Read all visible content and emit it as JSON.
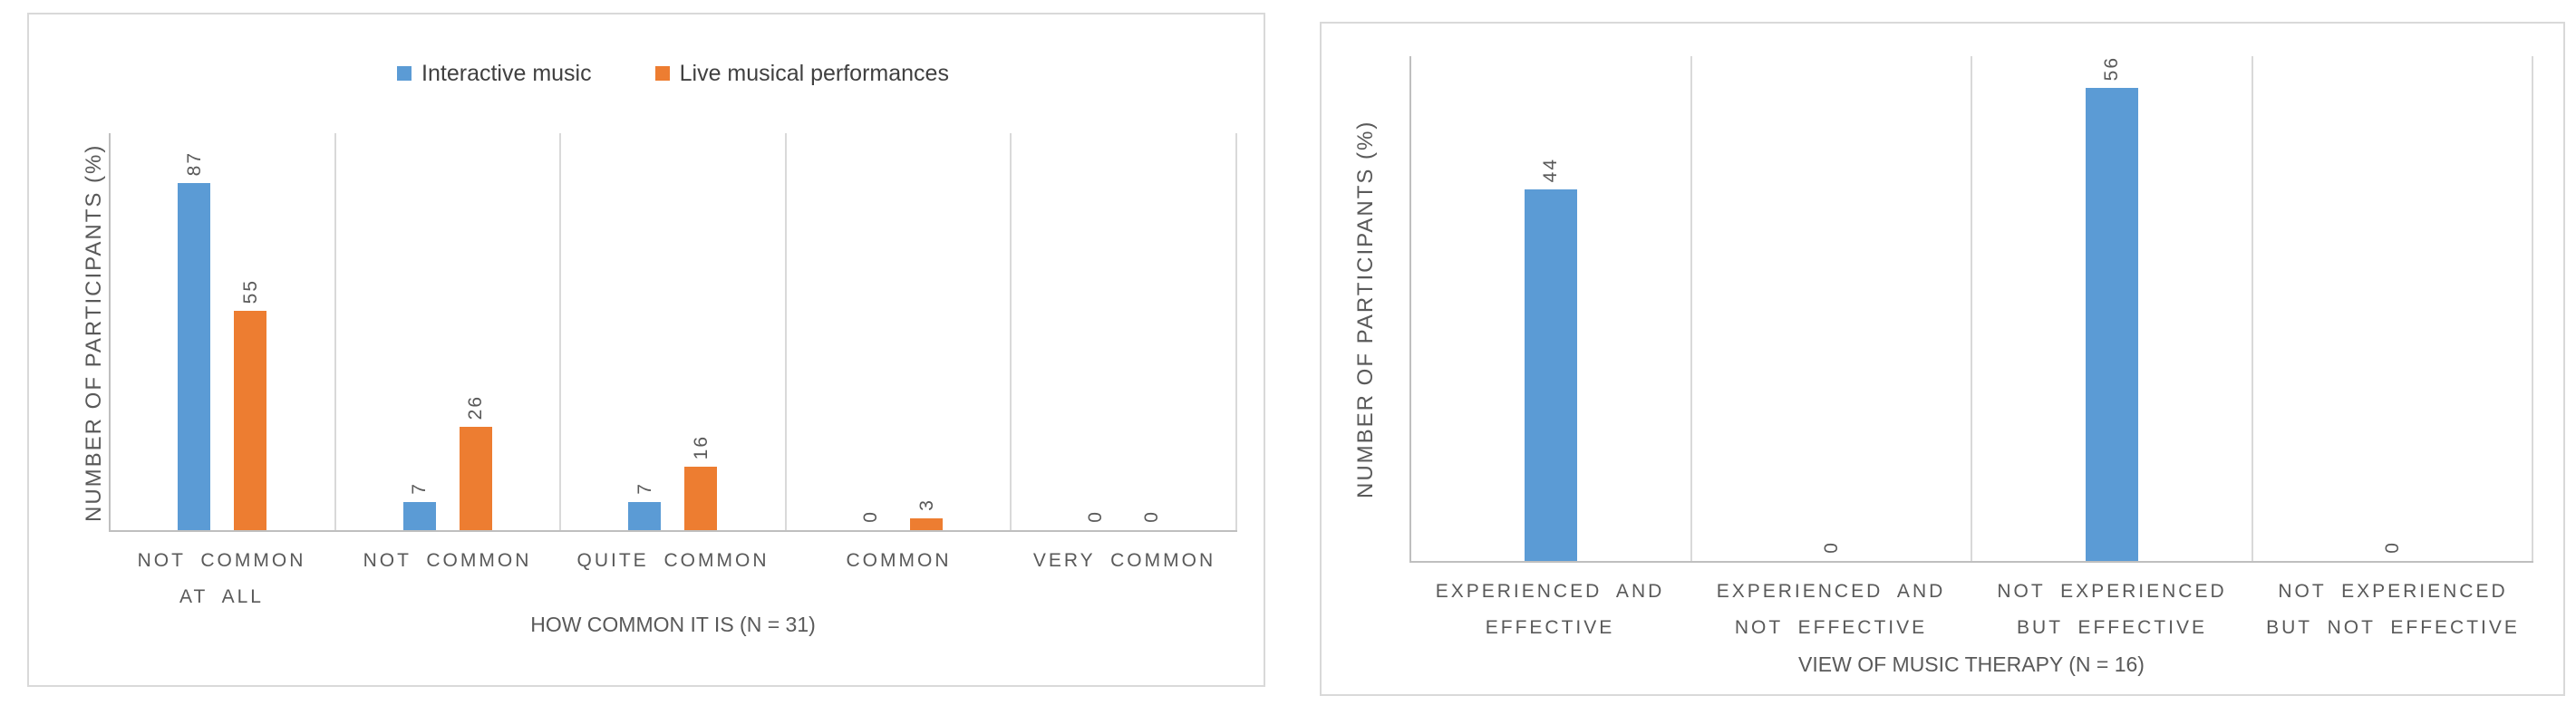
{
  "colors": {
    "series_blue": "#5B9BD5",
    "series_orange": "#ED7D31",
    "axis_line": "#BFBFBF",
    "gridline": "#D9D9D9",
    "label_text": "#595959",
    "legend_text": "#404040",
    "panel_border": "#D9D9D9",
    "background": "#FFFFFF"
  },
  "chart_data": [
    {
      "type": "bar",
      "title": "",
      "categories": [
        "NOT COMMON\nAT ALL",
        "NOT COMMON",
        "QUITE COMMON",
        "COMMON",
        "VERY COMMON"
      ],
      "series": [
        {
          "name": "Interactive music",
          "color": "#5B9BD5",
          "values": [
            87,
            7,
            7,
            0,
            0
          ]
        },
        {
          "name": "Live musical performances",
          "color": "#ED7D31",
          "values": [
            55,
            26,
            16,
            3,
            0
          ]
        }
      ],
      "xlabel": "HOW COMMON IT IS (N = 31)",
      "ylabel": "NUMBER OF PARTICIPANTS (%)",
      "ylim": [
        0,
        100
      ],
      "grid": "vertical-category-separators-only",
      "legend_position": "top",
      "data_labels": "values shown rotated 90° (reading bottom-to-top) above each bar"
    },
    {
      "type": "bar",
      "title": "",
      "categories": [
        "EXPERIENCED AND\nEFFECTIVE",
        "EXPERIENCED AND\nNOT EFFECTIVE",
        "NOT EXPERIENCED\nBUT EFFECTIVE",
        "NOT EXPERIENCED\nBUT NOT EFFECTIVE"
      ],
      "series": [
        {
          "name": "Number of participants",
          "color": "#5B9BD5",
          "values": [
            44,
            0,
            56,
            0
          ]
        }
      ],
      "xlabel": "VIEW OF MUSIC THERAPY (N = 16)",
      "ylabel": "NUMBER OF PARTICIPANTS (%)",
      "ylim": [
        0,
        60
      ],
      "grid": "vertical-category-separators-only",
      "legend_position": "none",
      "data_labels": "values shown rotated 90° (reading bottom-to-top) above each bar"
    }
  ]
}
